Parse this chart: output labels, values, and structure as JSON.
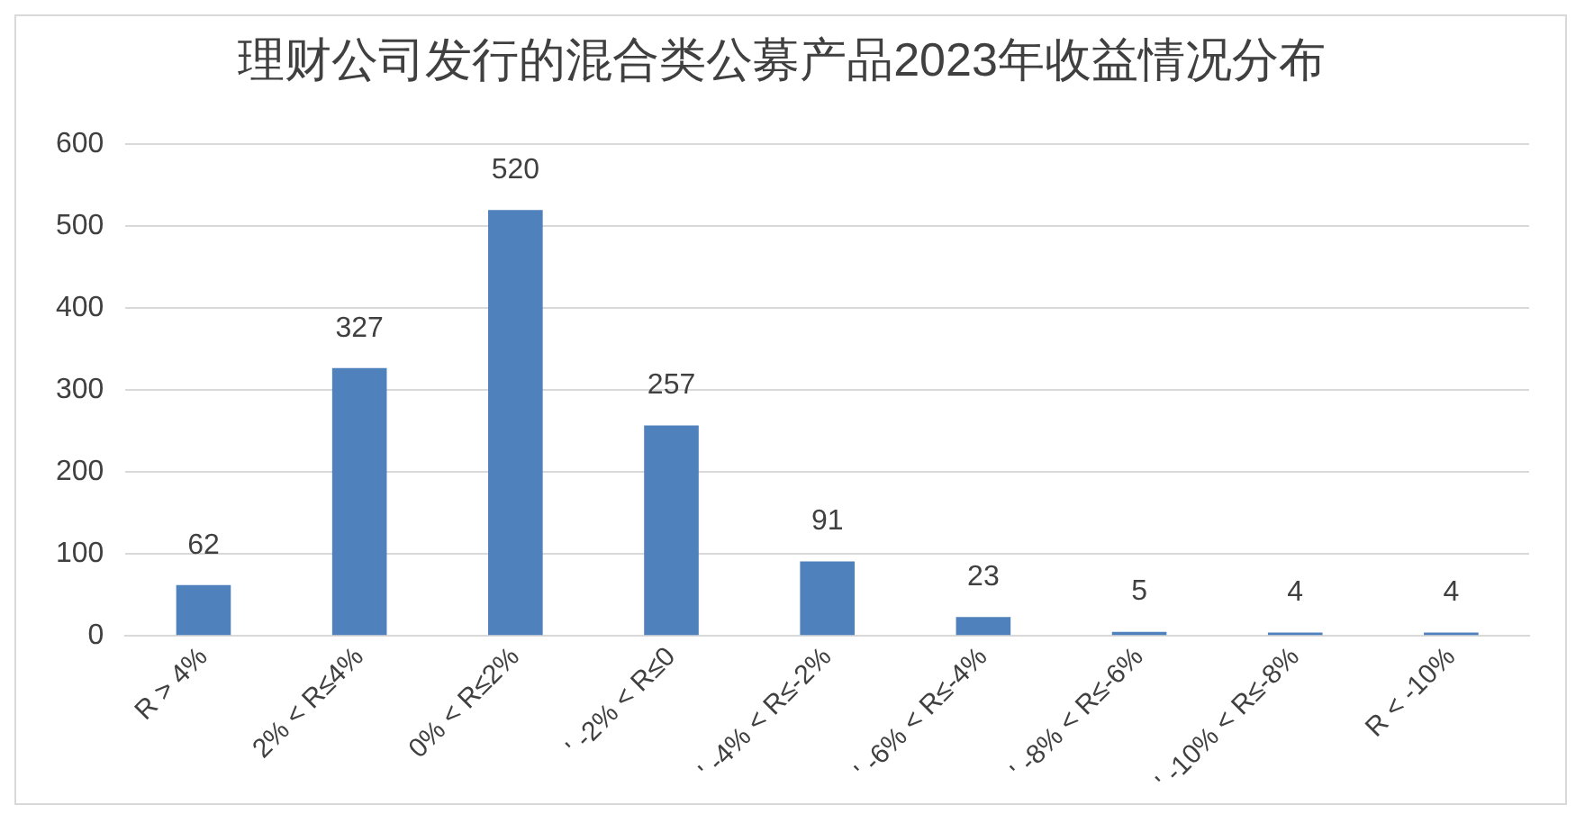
{
  "chart_data": {
    "type": "bar",
    "title": "理财公司发行的混合类公募产品2023年收益情况分布",
    "categories": [
      "R > 4%",
      "2% < R≤4%",
      "0% < R≤2%",
      "' -2% < R≤0",
      "' -4% < R≤-2%",
      "' -6% < R≤-4%",
      "' -8% < R≤-6%",
      "' -10% < R≤-8%",
      "R < -10%"
    ],
    "values": [
      62,
      327,
      520,
      257,
      91,
      23,
      5,
      4,
      4
    ],
    "color": "#4f81bd",
    "ylim": [
      0,
      600
    ],
    "yticks": [
      0,
      100,
      200,
      300,
      400,
      500,
      600
    ],
    "grid": "y",
    "data_labels": true
  }
}
